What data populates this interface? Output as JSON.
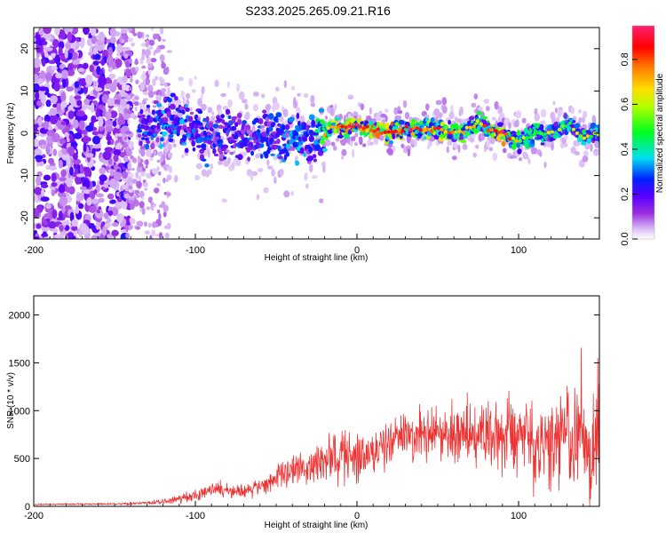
{
  "page_title": "S233.2025.265.09.21.R16",
  "chart_data": [
    {
      "type": "heatmap",
      "name": "spectrogram",
      "title": "S233.2025.265.09.21.R16",
      "xlabel": "Height of straight line (km)",
      "ylabel": "Frequency (Hz)",
      "xlim": [
        -200,
        150
      ],
      "ylim": [
        -25,
        25
      ],
      "x_ticks": [
        -200,
        -100,
        0,
        100
      ],
      "x_tick_labels": [
        "-200",
        "-100",
        "0",
        "100"
      ],
      "y_ticks": [
        -20,
        -10,
        0,
        10,
        20
      ],
      "y_tick_labels": [
        "-20",
        "-10",
        "0",
        "10",
        "20"
      ],
      "colorbar": {
        "label": "Normalized spectral amplitude",
        "range": [
          0,
          0.95
        ],
        "ticks": [
          0.0,
          0.2,
          0.4,
          0.6,
          0.8
        ],
        "tick_labels": [
          "0.0",
          "0.2",
          "0.4",
          "0.6",
          "0.8"
        ]
      },
      "ridge": {
        "x": [
          -130,
          -120,
          -110,
          -100,
          -90,
          -80,
          -70,
          -60,
          -50,
          -40,
          -30,
          -20,
          -15,
          -10,
          0,
          10,
          20,
          30,
          40,
          50,
          60,
          70,
          75,
          80,
          90,
          100,
          110,
          120,
          130,
          140,
          150
        ],
        "frequency": [
          2,
          2,
          3,
          0,
          -1,
          -1,
          -1,
          0,
          -1,
          -1,
          -2,
          0,
          2,
          1,
          2,
          1,
          0,
          1,
          1,
          1,
          0,
          1,
          3,
          1,
          0,
          -2,
          0,
          0,
          2,
          -1,
          0
        ],
        "amplitude": [
          0.3,
          0.35,
          0.35,
          0.3,
          0.3,
          0.3,
          0.3,
          0.3,
          0.35,
          0.35,
          0.35,
          0.55,
          0.6,
          0.75,
          0.75,
          0.75,
          0.8,
          0.7,
          0.7,
          0.65,
          0.55,
          0.5,
          0.55,
          0.6,
          0.8,
          0.45,
          0.45,
          0.4,
          0.4,
          0.45,
          0.4
        ]
      }
    },
    {
      "type": "line",
      "name": "snr",
      "xlabel": "Height of straight line (km)",
      "ylabel": "SNR (10 * v/v)",
      "xlim": [
        -200,
        150
      ],
      "ylim": [
        0,
        2200
      ],
      "x_ticks": [
        -200,
        -100,
        0,
        100
      ],
      "x_tick_labels": [
        "-200",
        "-100",
        "0",
        "100"
      ],
      "y_ticks": [
        0,
        500,
        1000,
        1500,
        2000
      ],
      "y_tick_labels": [
        "0",
        "500",
        "1000",
        "1500",
        "2000"
      ],
      "line_color": "#ee3333",
      "envelope": {
        "x": [
          -200,
          -150,
          -120,
          -100,
          -85,
          -75,
          -60,
          -50,
          -40,
          -30,
          -20,
          -10,
          0,
          10,
          20,
          30,
          50,
          70,
          80,
          90,
          100,
          110,
          120,
          130,
          140,
          150
        ],
        "mean": [
          20,
          25,
          45,
          120,
          190,
          150,
          210,
          300,
          380,
          400,
          450,
          560,
          560,
          520,
          680,
          760,
          780,
          760,
          780,
          700,
          680,
          600,
          720,
          650,
          680,
          600
        ],
        "spread": [
          6,
          12,
          30,
          60,
          90,
          80,
          100,
          140,
          180,
          200,
          250,
          320,
          320,
          230,
          250,
          280,
          300,
          320,
          380,
          420,
          480,
          550,
          600,
          700,
          700,
          650
        ]
      }
    }
  ]
}
